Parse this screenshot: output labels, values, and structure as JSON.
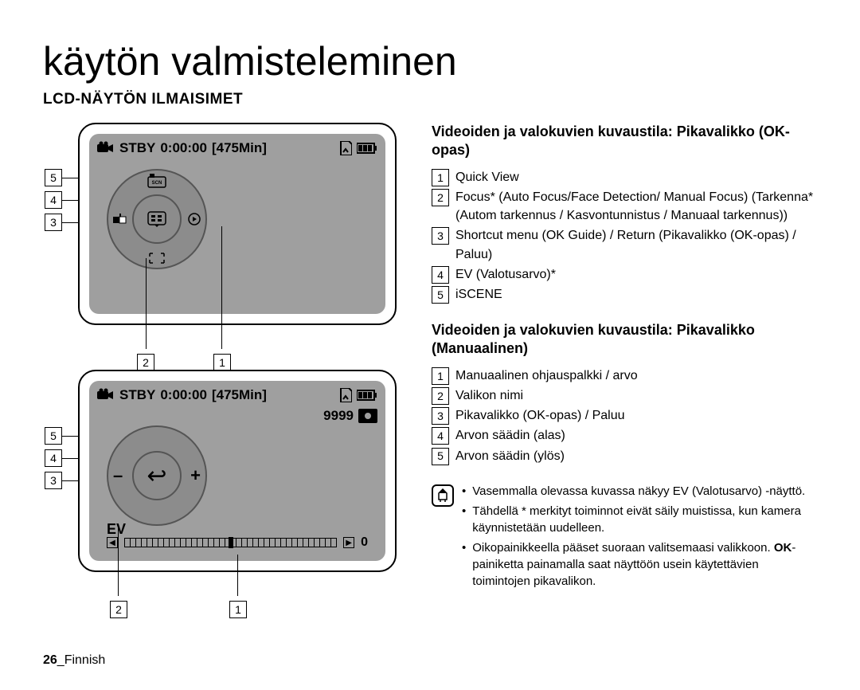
{
  "title": "käytön valmisteleminen",
  "section": "LCD-NÄYTÖN ILMAISIMET",
  "lcd": {
    "stby": "STBY",
    "time": "0:00:00",
    "remaining": "[475Min]",
    "photo_count": "9999",
    "scn_label": "SCN",
    "ev_label": "EV",
    "ev_value": "0",
    "minus": "–",
    "plus": "+",
    "return": "↩"
  },
  "callouts": {
    "left": [
      "5",
      "4",
      "3"
    ],
    "bottom": [
      "2",
      "1"
    ]
  },
  "sub1_title": "Videoiden ja valokuvien kuvaustila: Pikavalikko (OK-opas)",
  "sub1_items": [
    {
      "n": "1",
      "text": "Quick View"
    },
    {
      "n": "2",
      "text": "Focus* (Auto Focus/Face Detection/ Manual Focus) (Tarkenna* (Autom tarkennus / Kasvontunnistus / Manuaal tarkennus))"
    },
    {
      "n": "3",
      "text": "Shortcut menu (OK Guide) / Return (Pikavalikko (OK-opas) / Paluu)"
    },
    {
      "n": "4",
      "text": "EV (Valotusarvo)*"
    },
    {
      "n": "5",
      "text": "iSCENE"
    }
  ],
  "sub2_title": "Videoiden ja valokuvien kuvaustila: Pikavalikko (Manuaalinen)",
  "sub2_items": [
    {
      "n": "1",
      "text": "Manuaalinen ohjauspalkki / arvo"
    },
    {
      "n": "2",
      "text": "Valikon nimi"
    },
    {
      "n": "3",
      "text": "Pikavalikko (OK-opas) / Paluu"
    },
    {
      "n": "4",
      "text": "Arvon säädin (alas)"
    },
    {
      "n": "5",
      "text": "Arvon säädin (ylös)"
    }
  ],
  "notes": [
    "Vasemmalla olevassa kuvassa näkyy EV (Valotusarvo) -näyttö.",
    "Tähdellä * merkityt toiminnot eivät säily muistissa, kun kamera käynnistetään uudelleen.",
    "Oikopainikkeella pääset suoraan valitsemaasi valikkoon. OK-painiketta painamalla saat näyttöön usein käytettävien toimintojen pikavalikon."
  ],
  "footer_page": "26",
  "footer_lang": "Finnish"
}
